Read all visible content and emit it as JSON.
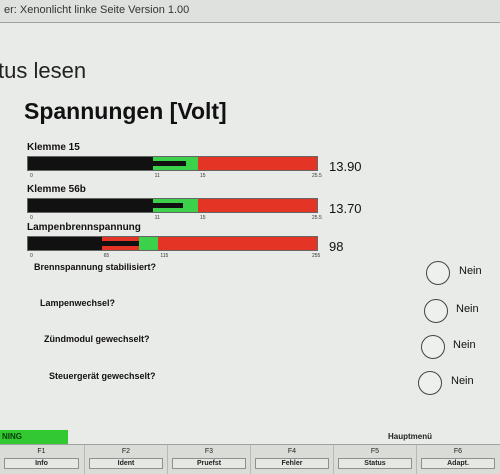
{
  "window": {
    "title": "er: Xenonlicht linke Seite Version 1.00"
  },
  "screen": {
    "title": "tus lesen"
  },
  "section": {
    "title": "Spannungen [Volt]"
  },
  "gauges": [
    {
      "label": "Klemme 15",
      "value": "13.90",
      "ticks": [
        "0",
        "11",
        "15",
        "25.5"
      ],
      "black_level": 11,
      "green_range": [
        11,
        15
      ],
      "indicator_level": 13.9,
      "scale_max": 25.5
    },
    {
      "label": "Klemme 56b",
      "value": "13.70",
      "ticks": [
        "0",
        "11",
        "15",
        "25.5"
      ],
      "black_level": 11,
      "green_range": [
        11,
        15
      ],
      "indicator_level": 13.7,
      "scale_max": 25.5
    },
    {
      "label": "Lampenbrennspannung",
      "value": "98",
      "ticks": [
        "0",
        "65",
        "115",
        "255"
      ],
      "black_level": 65,
      "green_range": [
        98,
        115
      ],
      "indicator_level": 98,
      "scale_max": 255
    }
  ],
  "questions": [
    {
      "label": "Brennspannung stabilisiert?",
      "answer": "Nein"
    },
    {
      "label": "Lampenwechsel?",
      "answer": "Nein"
    },
    {
      "label": "Zündmodul gewechselt?",
      "answer": "Nein"
    },
    {
      "label": "Steuergerät gewechselt?",
      "answer": "Nein"
    }
  ],
  "status": {
    "text": "NING",
    "menu_label": "Hauptmenü",
    "color": "#32c832"
  },
  "function_keys": [
    {
      "key": "F1",
      "label": "Info"
    },
    {
      "key": "F2",
      "label": "Ident"
    },
    {
      "key": "F3",
      "label": "Pruefst"
    },
    {
      "key": "F4",
      "label": "Fehler"
    },
    {
      "key": "F5",
      "label": "Status"
    },
    {
      "key": "F6",
      "label": "Adapt."
    }
  ],
  "colors": {
    "gauge_red": "#e43425",
    "gauge_green": "#3bd14a",
    "gauge_black": "#111111"
  }
}
